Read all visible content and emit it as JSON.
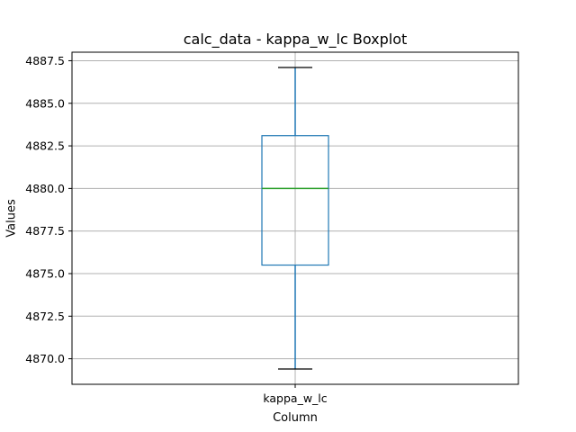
{
  "chart_data": {
    "type": "boxplot",
    "title": "calc_data - kappa_w_lc Boxplot",
    "xlabel": "Column",
    "ylabel": "Values",
    "categories": [
      "kappa_w_lc"
    ],
    "boxes": [
      {
        "name": "kappa_w_lc",
        "whisker_low": 4869.4,
        "q1": 4875.5,
        "median": 4880.0,
        "q3": 4883.1,
        "whisker_high": 4887.1
      }
    ],
    "ylim": [
      4868.5,
      4888.0
    ],
    "yticks": [
      4870.0,
      4872.5,
      4875.0,
      4877.5,
      4880.0,
      4882.5,
      4885.0,
      4887.5
    ],
    "ytick_labels": [
      "4870.0",
      "4872.5",
      "4875.0",
      "4877.5",
      "4880.0",
      "4882.5",
      "4885.0",
      "4887.5"
    ],
    "grid": true,
    "colors": {
      "box": "#1f77b4",
      "median": "#2ca02c",
      "whisker": "#1f77b4",
      "cap": "#000000",
      "grid": "#b0b0b0"
    }
  }
}
